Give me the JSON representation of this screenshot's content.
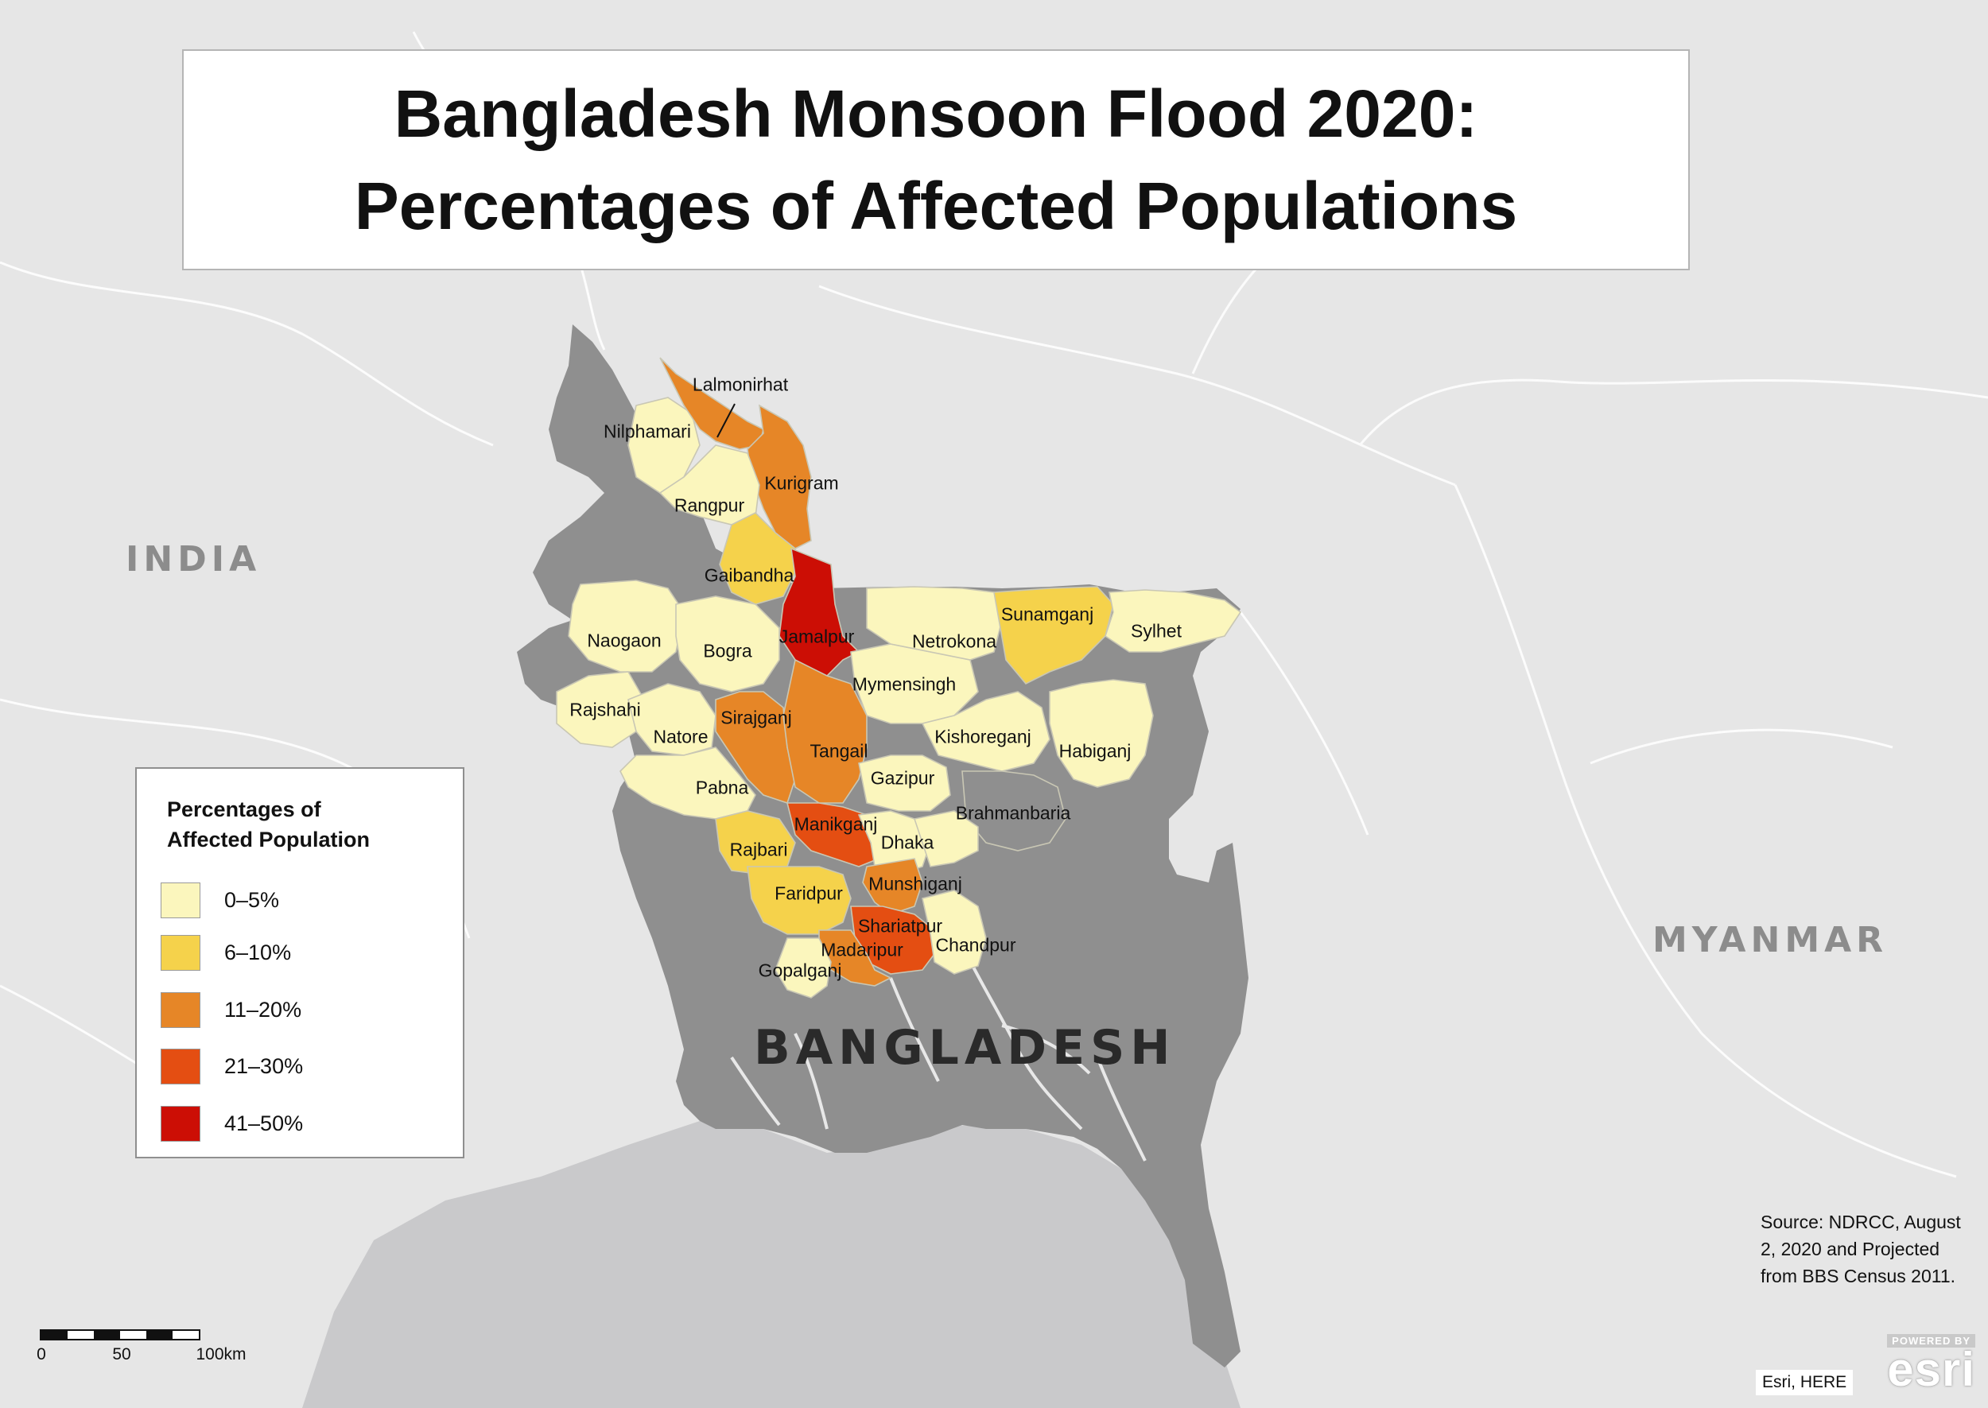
{
  "title": {
    "line1": "Bangladesh Monsoon Flood 2020:",
    "line2": "Percentages of Affected Populations"
  },
  "countries": {
    "india": "INDIA",
    "myanmar": "MYANMAR",
    "bangladesh": "BANGLADESH"
  },
  "legend": {
    "title_line1": "Percentages of",
    "title_line2": "Affected Population",
    "classes": [
      {
        "label": "0–5%",
        "color": "#fbf6bd"
      },
      {
        "label": "6–10%",
        "color": "#f5d24b"
      },
      {
        "label": "11–20%",
        "color": "#e68627"
      },
      {
        "label": "21–30%",
        "color": "#e44e12"
      },
      {
        "label": "41–50%",
        "color": "#cc0e05"
      }
    ]
  },
  "districts": [
    {
      "name": "Lalmonirhat",
      "class": "11–20%"
    },
    {
      "name": "Nilphamari",
      "class": "0–5%"
    },
    {
      "name": "Kurigram",
      "class": "11–20%"
    },
    {
      "name": "Rangpur",
      "class": "0–5%"
    },
    {
      "name": "Gaibandha",
      "class": "6–10%"
    },
    {
      "name": "Jamalpur",
      "class": "41–50%"
    },
    {
      "name": "Naogaon",
      "class": "0–5%"
    },
    {
      "name": "Bogra",
      "class": "0–5%"
    },
    {
      "name": "Netrokona",
      "class": "0–5%"
    },
    {
      "name": "Sunamganj",
      "class": "6–10%"
    },
    {
      "name": "Sylhet",
      "class": "0–5%"
    },
    {
      "name": "Mymensingh",
      "class": "0–5%"
    },
    {
      "name": "Rajshahi",
      "class": "0–5%"
    },
    {
      "name": "Sirajganj",
      "class": "11–20%"
    },
    {
      "name": "Natore",
      "class": "0–5%"
    },
    {
      "name": "Tangail",
      "class": "11–20%"
    },
    {
      "name": "Kishoreganj",
      "class": "0–5%"
    },
    {
      "name": "Habiganj",
      "class": "0–5%"
    },
    {
      "name": "Gazipur",
      "class": "0–5%"
    },
    {
      "name": "Pabna",
      "class": "0–5%"
    },
    {
      "name": "Brahmanbaria",
      "class": "0–5%"
    },
    {
      "name": "Manikganj",
      "class": "21–30%"
    },
    {
      "name": "Dhaka",
      "class": "0–5%"
    },
    {
      "name": "Rajbari",
      "class": "6–10%"
    },
    {
      "name": "Munshiganj",
      "class": "11–20%"
    },
    {
      "name": "Faridpur",
      "class": "6–10%"
    },
    {
      "name": "Shariatpur",
      "class": "21–30%"
    },
    {
      "name": "Madaripur",
      "class": "11–20%"
    },
    {
      "name": "Chandpur",
      "class": "0–5%"
    },
    {
      "name": "Gopalganj",
      "class": "0–5%"
    }
  ],
  "source": "Source: NDRCC, August 2, 2020 and Projected from BBS Census 2011.",
  "scale": {
    "ticks": [
      "0",
      "50",
      "100km"
    ]
  },
  "credits": "Esri, HERE",
  "esri_logo": {
    "powered_by": "POWERED BY",
    "wordmark": "esri"
  },
  "colors": {
    "land": "#e6e6e6",
    "water": "#c9c9cb",
    "bangladesh_base": "#8f8f8f",
    "border_line": "#ffffff",
    "dark_river": "#ffffff"
  }
}
